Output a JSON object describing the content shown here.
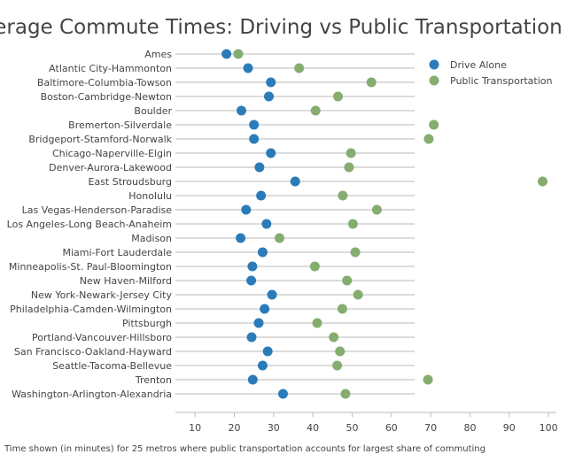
{
  "chart_data": {
    "type": "scatter",
    "title": "Average Commute Times: Driving vs Public Transportation",
    "caption": "Time shown (in minutes) for 25 metros where public transportation accounts for largest share of commuting",
    "xlim": [
      5,
      102
    ],
    "xticks": [
      10,
      20,
      30,
      40,
      50,
      60,
      70,
      80,
      90,
      100
    ],
    "legend_position": "top-right",
    "categories": [
      "Ames",
      "Atlantic City-Hammonton",
      "Baltimore-Columbia-Towson",
      "Boston-Cambridge-Newton",
      "Boulder",
      "Bremerton-Silverdale",
      "Bridgeport-Stamford-Norwalk",
      "Chicago-Naperville-Elgin",
      "Denver-Aurora-Lakewood",
      "East Stroudsburg",
      "Honolulu",
      "Las Vegas-Henderson-Paradise",
      "Los Angeles-Long Beach-Anaheim",
      "Madison",
      "Miami-Fort Lauderdale",
      "Minneapolis-St. Paul-Bloomington",
      "New Haven-Milford",
      "New York-Newark-Jersey City",
      "Philadelphia-Camden-Wilmington",
      "Pittsburgh",
      "Portland-Vancouver-Hillsboro",
      "San Francisco-Oakland-Hayward",
      "Seattle-Tacoma-Bellevue",
      "Trenton",
      "Washington-Arlington-Alexandria"
    ],
    "series": [
      {
        "name": "Drive Alone",
        "color": "#2b7bb9",
        "values": [
          18,
          23.5,
          29.3,
          28.8,
          21.8,
          25,
          25,
          29.3,
          26.4,
          35.5,
          26.8,
          23,
          28.2,
          21.6,
          27.2,
          24.6,
          24.3,
          29.6,
          27.7,
          26.2,
          24.4,
          28.5,
          27.2,
          24.7,
          32.4
        ]
      },
      {
        "name": "Public Transportation",
        "color": "#84ad6f",
        "values": [
          21,
          36.5,
          54.9,
          46.4,
          40.7,
          70.8,
          69.5,
          49.7,
          49.2,
          98.5,
          47.6,
          56.3,
          50.2,
          31.5,
          50.8,
          40.5,
          48.7,
          51.5,
          47.5,
          41.1,
          45.3,
          46.9,
          46.2,
          69.3,
          48.3
        ]
      }
    ]
  }
}
